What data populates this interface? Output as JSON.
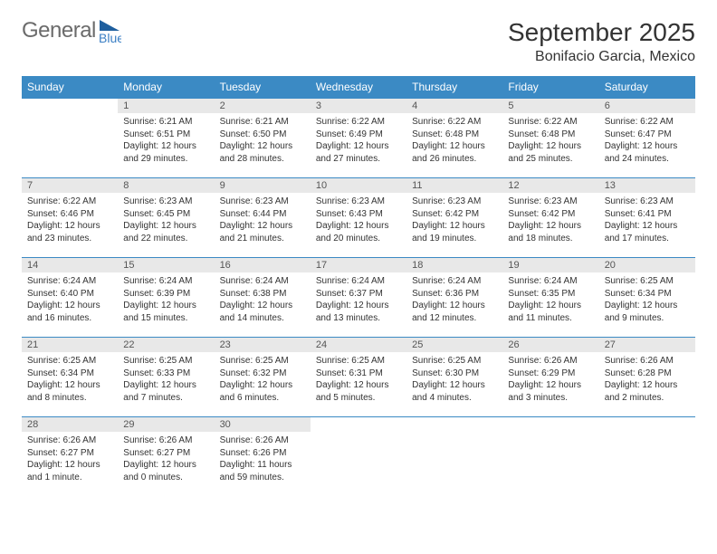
{
  "brand": {
    "part1": "General",
    "part2": "Blue",
    "color_general": "#6b6b6b",
    "color_blue": "#3b7fc4"
  },
  "header": {
    "month": "September 2025",
    "location": "Bonifacio Garcia, Mexico"
  },
  "colors": {
    "header_bg": "#3b8ac4",
    "header_text": "#ffffff",
    "daynum_bg": "#e8e8e8",
    "border": "#3b8ac4",
    "text": "#333333"
  },
  "dayNames": [
    "Sunday",
    "Monday",
    "Tuesday",
    "Wednesday",
    "Thursday",
    "Friday",
    "Saturday"
  ],
  "weeks": [
    {
      "nums": [
        "",
        "1",
        "2",
        "3",
        "4",
        "5",
        "6"
      ],
      "cells": [
        {
          "empty": true
        },
        {
          "sunrise": "Sunrise: 6:21 AM",
          "sunset": "Sunset: 6:51 PM",
          "day1": "Daylight: 12 hours",
          "day2": "and 29 minutes."
        },
        {
          "sunrise": "Sunrise: 6:21 AM",
          "sunset": "Sunset: 6:50 PM",
          "day1": "Daylight: 12 hours",
          "day2": "and 28 minutes."
        },
        {
          "sunrise": "Sunrise: 6:22 AM",
          "sunset": "Sunset: 6:49 PM",
          "day1": "Daylight: 12 hours",
          "day2": "and 27 minutes."
        },
        {
          "sunrise": "Sunrise: 6:22 AM",
          "sunset": "Sunset: 6:48 PM",
          "day1": "Daylight: 12 hours",
          "day2": "and 26 minutes."
        },
        {
          "sunrise": "Sunrise: 6:22 AM",
          "sunset": "Sunset: 6:48 PM",
          "day1": "Daylight: 12 hours",
          "day2": "and 25 minutes."
        },
        {
          "sunrise": "Sunrise: 6:22 AM",
          "sunset": "Sunset: 6:47 PM",
          "day1": "Daylight: 12 hours",
          "day2": "and 24 minutes."
        }
      ]
    },
    {
      "nums": [
        "7",
        "8",
        "9",
        "10",
        "11",
        "12",
        "13"
      ],
      "cells": [
        {
          "sunrise": "Sunrise: 6:22 AM",
          "sunset": "Sunset: 6:46 PM",
          "day1": "Daylight: 12 hours",
          "day2": "and 23 minutes."
        },
        {
          "sunrise": "Sunrise: 6:23 AM",
          "sunset": "Sunset: 6:45 PM",
          "day1": "Daylight: 12 hours",
          "day2": "and 22 minutes."
        },
        {
          "sunrise": "Sunrise: 6:23 AM",
          "sunset": "Sunset: 6:44 PM",
          "day1": "Daylight: 12 hours",
          "day2": "and 21 minutes."
        },
        {
          "sunrise": "Sunrise: 6:23 AM",
          "sunset": "Sunset: 6:43 PM",
          "day1": "Daylight: 12 hours",
          "day2": "and 20 minutes."
        },
        {
          "sunrise": "Sunrise: 6:23 AM",
          "sunset": "Sunset: 6:42 PM",
          "day1": "Daylight: 12 hours",
          "day2": "and 19 minutes."
        },
        {
          "sunrise": "Sunrise: 6:23 AM",
          "sunset": "Sunset: 6:42 PM",
          "day1": "Daylight: 12 hours",
          "day2": "and 18 minutes."
        },
        {
          "sunrise": "Sunrise: 6:23 AM",
          "sunset": "Sunset: 6:41 PM",
          "day1": "Daylight: 12 hours",
          "day2": "and 17 minutes."
        }
      ]
    },
    {
      "nums": [
        "14",
        "15",
        "16",
        "17",
        "18",
        "19",
        "20"
      ],
      "cells": [
        {
          "sunrise": "Sunrise: 6:24 AM",
          "sunset": "Sunset: 6:40 PM",
          "day1": "Daylight: 12 hours",
          "day2": "and 16 minutes."
        },
        {
          "sunrise": "Sunrise: 6:24 AM",
          "sunset": "Sunset: 6:39 PM",
          "day1": "Daylight: 12 hours",
          "day2": "and 15 minutes."
        },
        {
          "sunrise": "Sunrise: 6:24 AM",
          "sunset": "Sunset: 6:38 PM",
          "day1": "Daylight: 12 hours",
          "day2": "and 14 minutes."
        },
        {
          "sunrise": "Sunrise: 6:24 AM",
          "sunset": "Sunset: 6:37 PM",
          "day1": "Daylight: 12 hours",
          "day2": "and 13 minutes."
        },
        {
          "sunrise": "Sunrise: 6:24 AM",
          "sunset": "Sunset: 6:36 PM",
          "day1": "Daylight: 12 hours",
          "day2": "and 12 minutes."
        },
        {
          "sunrise": "Sunrise: 6:24 AM",
          "sunset": "Sunset: 6:35 PM",
          "day1": "Daylight: 12 hours",
          "day2": "and 11 minutes."
        },
        {
          "sunrise": "Sunrise: 6:25 AM",
          "sunset": "Sunset: 6:34 PM",
          "day1": "Daylight: 12 hours",
          "day2": "and 9 minutes."
        }
      ]
    },
    {
      "nums": [
        "21",
        "22",
        "23",
        "24",
        "25",
        "26",
        "27"
      ],
      "cells": [
        {
          "sunrise": "Sunrise: 6:25 AM",
          "sunset": "Sunset: 6:34 PM",
          "day1": "Daylight: 12 hours",
          "day2": "and 8 minutes."
        },
        {
          "sunrise": "Sunrise: 6:25 AM",
          "sunset": "Sunset: 6:33 PM",
          "day1": "Daylight: 12 hours",
          "day2": "and 7 minutes."
        },
        {
          "sunrise": "Sunrise: 6:25 AM",
          "sunset": "Sunset: 6:32 PM",
          "day1": "Daylight: 12 hours",
          "day2": "and 6 minutes."
        },
        {
          "sunrise": "Sunrise: 6:25 AM",
          "sunset": "Sunset: 6:31 PM",
          "day1": "Daylight: 12 hours",
          "day2": "and 5 minutes."
        },
        {
          "sunrise": "Sunrise: 6:25 AM",
          "sunset": "Sunset: 6:30 PM",
          "day1": "Daylight: 12 hours",
          "day2": "and 4 minutes."
        },
        {
          "sunrise": "Sunrise: 6:26 AM",
          "sunset": "Sunset: 6:29 PM",
          "day1": "Daylight: 12 hours",
          "day2": "and 3 minutes."
        },
        {
          "sunrise": "Sunrise: 6:26 AM",
          "sunset": "Sunset: 6:28 PM",
          "day1": "Daylight: 12 hours",
          "day2": "and 2 minutes."
        }
      ]
    },
    {
      "nums": [
        "28",
        "29",
        "30",
        "",
        "",
        "",
        ""
      ],
      "cells": [
        {
          "sunrise": "Sunrise: 6:26 AM",
          "sunset": "Sunset: 6:27 PM",
          "day1": "Daylight: 12 hours",
          "day2": "and 1 minute."
        },
        {
          "sunrise": "Sunrise: 6:26 AM",
          "sunset": "Sunset: 6:27 PM",
          "day1": "Daylight: 12 hours",
          "day2": "and 0 minutes."
        },
        {
          "sunrise": "Sunrise: 6:26 AM",
          "sunset": "Sunset: 6:26 PM",
          "day1": "Daylight: 11 hours",
          "day2": "and 59 minutes."
        },
        {
          "empty": true
        },
        {
          "empty": true
        },
        {
          "empty": true
        },
        {
          "empty": true
        }
      ]
    }
  ]
}
